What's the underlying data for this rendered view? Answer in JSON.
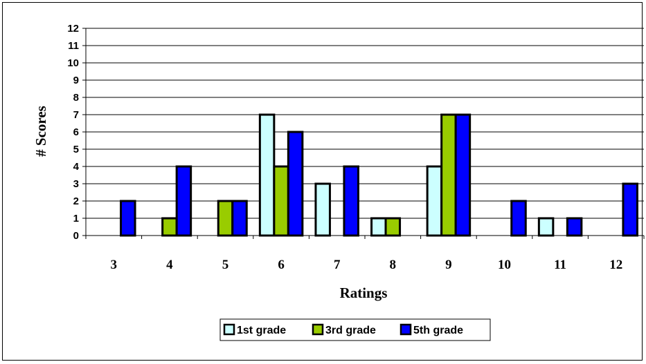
{
  "chart_data": {
    "type": "bar",
    "title": "",
    "xlabel": "Ratings",
    "ylabel": "# Scores",
    "categories": [
      "3",
      "4",
      "5",
      "6",
      "7",
      "8",
      "9",
      "10",
      "11",
      "12"
    ],
    "ylim": [
      0,
      12
    ],
    "yticks": [
      "0",
      "1",
      "2",
      "3",
      "4",
      "5",
      "6",
      "7",
      "8",
      "9",
      "10",
      "11",
      "12"
    ],
    "grid": true,
    "legend_position": "bottom",
    "series": [
      {
        "name": "1st grade",
        "color": "#ccffff",
        "values": [
          0,
          0,
          0,
          7,
          3,
          1,
          4,
          0,
          1,
          0
        ]
      },
      {
        "name": "3rd grade",
        "color": "#99cc00",
        "values": [
          0,
          1,
          2,
          4,
          0,
          1,
          7,
          0,
          0,
          0
        ]
      },
      {
        "name": "5th grade",
        "color": "#0000ff",
        "values": [
          2,
          4,
          2,
          6,
          4,
          0,
          7,
          2,
          1,
          3
        ]
      }
    ]
  }
}
